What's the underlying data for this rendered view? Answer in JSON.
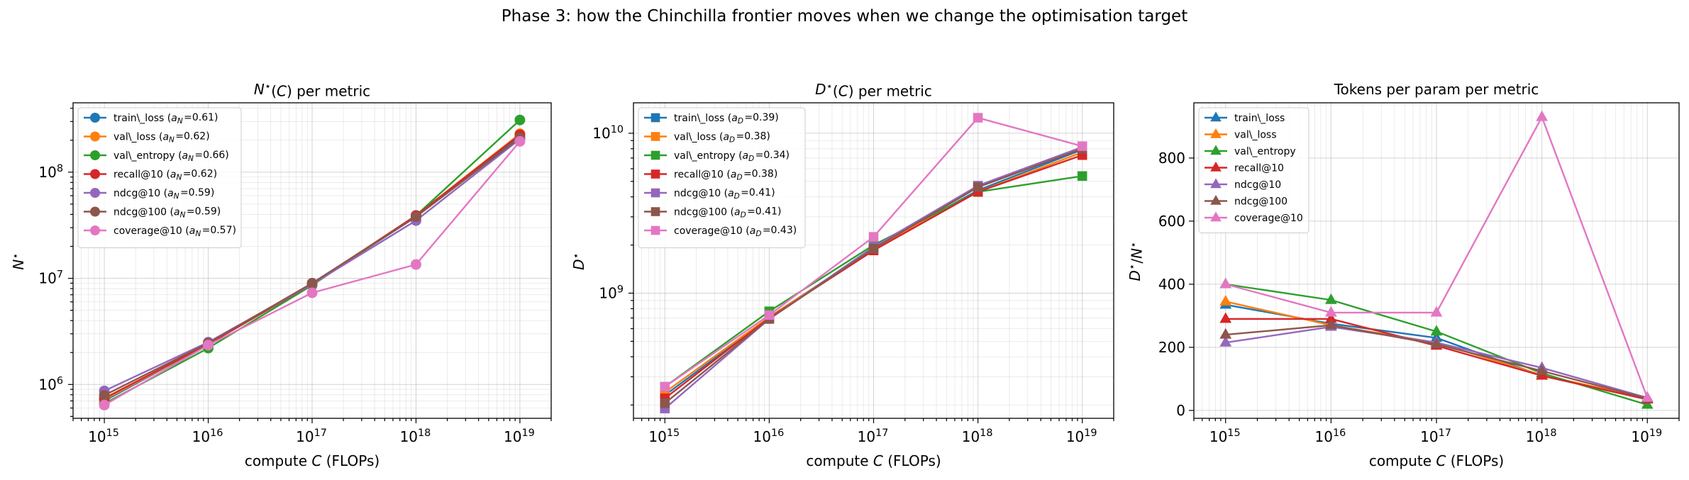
{
  "figure": {
    "suptitle": "Phase 3: how the Chinchilla frontier moves when we change the optimisation target"
  },
  "colors": {
    "train\\_loss": "#1f77b4",
    "val\\_loss": "#ff7f0e",
    "val\\_entropy": "#2ca02c",
    "recall@10": "#d62728",
    "ndcg@10": "#9467bd",
    "ndcg@100": "#8c564b",
    "coverage@10": "#e377c2"
  },
  "chart_data": [
    {
      "type": "line",
      "title": "N*(C) per metric",
      "xlabel": "compute C (FLOPs)",
      "ylabel": "N*",
      "xscale": "log",
      "yscale": "log",
      "xlim": [
        500000000000000.0,
        2e+19
      ],
      "ylim": [
        480000.0,
        450000000.0
      ],
      "x": [
        1000000000000000.0,
        1e+16,
        1e+17,
        1e+18,
        1e+19
      ],
      "x_tick_labels": [
        "10^15",
        "10^16",
        "10^17",
        "10^18",
        "10^19"
      ],
      "y_tick_labels": [
        "10^6",
        "10^7",
        "10^8"
      ],
      "y_tick_values": [
        1000000.0,
        10000000.0,
        100000000.0
      ],
      "grid": true,
      "legend_position": "upper-left",
      "marker": "circle",
      "series": [
        {
          "name": "train\\_loss",
          "legend": "train\\_loss (a_N=0.61)",
          "values": [
            700000.0,
            2400000.0,
            8800000.0,
            38000000.0,
            220000000.0
          ]
        },
        {
          "name": "val\\_loss",
          "legend": "val\\_loss (a_N=0.62)",
          "values": [
            720000.0,
            2400000.0,
            8900000.0,
            39000000.0,
            230000000.0
          ]
        },
        {
          "name": "val\\_entropy",
          "legend": "val\\_entropy (a_N=0.66)",
          "values": [
            660000.0,
            2200000.0,
            8600000.0,
            39000000.0,
            310000000.0
          ]
        },
        {
          "name": "recall@10",
          "legend": "recall@10 (a_N=0.62)",
          "values": [
            740000.0,
            2400000.0,
            8800000.0,
            39000000.0,
            225000000.0
          ]
        },
        {
          "name": "ndcg@10",
          "legend": "ndcg@10 (a_N=0.59)",
          "values": [
            870000.0,
            2500000.0,
            8800000.0,
            35000000.0,
            205000000.0
          ]
        },
        {
          "name": "ndcg@100",
          "legend": "ndcg@100 (a_N=0.59)",
          "values": [
            790000.0,
            2450000.0,
            9000000.0,
            38000000.0,
            210000000.0
          ]
        },
        {
          "name": "coverage@10",
          "legend": "coverage@10 (a_N=0.57)",
          "values": [
            640000.0,
            2350000.0,
            7300000.0,
            13500000.0,
            195000000.0
          ]
        }
      ]
    },
    {
      "type": "line",
      "title": "D*(C) per metric",
      "xlabel": "compute C (FLOPs)",
      "ylabel": "D*",
      "xscale": "log",
      "yscale": "log",
      "xlim": [
        500000000000000.0,
        2e+19
      ],
      "ylim": [
        165000000.0,
        15500000000.0
      ],
      "x": [
        1000000000000000.0,
        1e+16,
        1e+17,
        1e+18,
        1e+19
      ],
      "x_tick_labels": [
        "10^15",
        "10^16",
        "10^17",
        "10^18",
        "10^19"
      ],
      "y_tick_labels": [
        "10^9",
        "10^10"
      ],
      "y_tick_values": [
        1000000000.0,
        10000000000.0
      ],
      "grid": true,
      "legend_position": "upper-left",
      "marker": "square",
      "series": [
        {
          "name": "train\\_loss",
          "legend": "train\\_loss (a_D=0.39)",
          "values": [
            230000000.0,
            700000000.0,
            1900000000.0,
            4400000000.0,
            7900000000.0
          ]
        },
        {
          "name": "val\\_loss",
          "legend": "val\\_loss (a_D=0.38)",
          "values": [
            240000000.0,
            710000000.0,
            1900000000.0,
            4300000000.0,
            7600000000.0
          ]
        },
        {
          "name": "val\\_entropy",
          "legend": "val\\_entropy (a_D=0.34)",
          "values": [
            260000000.0,
            770000000.0,
            2000000000.0,
            4300000000.0,
            5400000000.0
          ]
        },
        {
          "name": "recall@10",
          "legend": "recall@10 (a_D=0.38)",
          "values": [
            220000000.0,
            700000000.0,
            1850000000.0,
            4300000000.0,
            7300000000.0
          ]
        },
        {
          "name": "ndcg@10",
          "legend": "ndcg@10 (a_D=0.41)",
          "values": [
            190000000.0,
            690000000.0,
            1950000000.0,
            4700000000.0,
            8200000000.0
          ]
        },
        {
          "name": "ndcg@100",
          "legend": "ndcg@100 (a_D=0.41)",
          "values": [
            205000000.0,
            690000000.0,
            1900000000.0,
            4600000000.0,
            8000000000.0
          ]
        },
        {
          "name": "coverage@10",
          "legend": "coverage@10 (a_D=0.43)",
          "values": [
            260000000.0,
            730000000.0,
            2250000000.0,
            12500000000.0,
            8300000000.0
          ]
        }
      ]
    },
    {
      "type": "line",
      "title": "Tokens per param per metric",
      "xlabel": "compute C (FLOPs)",
      "ylabel": "D*/N*",
      "xscale": "log",
      "yscale": "linear",
      "xlim": [
        500000000000000.0,
        2e+19
      ],
      "ylim": [
        -25,
        975
      ],
      "x": [
        1000000000000000.0,
        1e+16,
        1e+17,
        1e+18,
        1e+19
      ],
      "x_tick_labels": [
        "10^15",
        "10^16",
        "10^17",
        "10^18",
        "10^19"
      ],
      "y_tick_labels": [
        "0",
        "200",
        "400",
        "600",
        "800"
      ],
      "y_tick_values": [
        0,
        200,
        400,
        600,
        800
      ],
      "grid": true,
      "legend_position": "upper-left",
      "marker": "triangle",
      "series": [
        {
          "name": "train\\_loss",
          "legend": "train\\_loss",
          "values": [
            335,
            275,
            230,
            110,
            35
          ]
        },
        {
          "name": "val\\_loss",
          "legend": "val\\_loss",
          "values": [
            345,
            270,
            215,
            112,
            38
          ]
        },
        {
          "name": "val\\_entropy",
          "legend": "val\\_entropy",
          "values": [
            400,
            350,
            250,
            118,
            18
          ]
        },
        {
          "name": "recall@10",
          "legend": "recall@10",
          "values": [
            290,
            290,
            205,
            110,
            35
          ]
        },
        {
          "name": "ndcg@10",
          "legend": "ndcg@10",
          "values": [
            215,
            265,
            215,
            135,
            40
          ]
        },
        {
          "name": "ndcg@100",
          "legend": "ndcg@100",
          "values": [
            240,
            270,
            210,
            125,
            38
          ]
        },
        {
          "name": "coverage@10",
          "legend": "coverage@10",
          "values": [
            400,
            310,
            310,
            930,
            40
          ]
        }
      ]
    }
  ]
}
